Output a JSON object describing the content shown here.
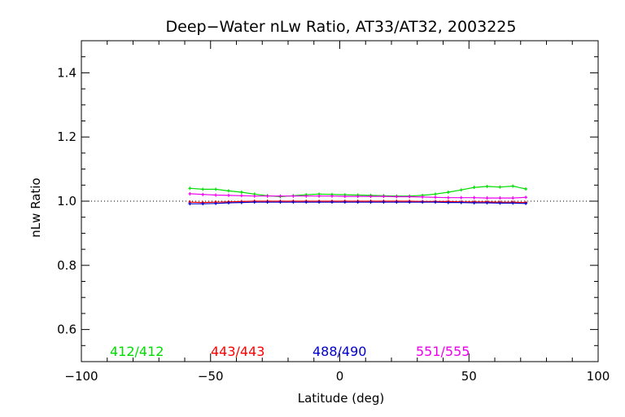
{
  "chart_data": {
    "type": "line",
    "title": "Deep−Water nLw Ratio, AT33/AT32, 2003225",
    "xlabel": "Latitude (deg)",
    "ylabel": "nLw Ratio",
    "xlim": [
      -100,
      100
    ],
    "ylim": [
      0.5,
      1.5
    ],
    "x_ticks": [
      -100,
      -50,
      0,
      50,
      100
    ],
    "x_tick_labels": [
      "−100",
      "−50",
      "0",
      "50",
      "100"
    ],
    "y_ticks": [
      0.6,
      0.8,
      1.0,
      1.2,
      1.4
    ],
    "y_tick_labels": [
      "0.6",
      "0.8",
      "1.0",
      "1.2",
      "1.4"
    ],
    "reference_line": 1.0,
    "x": [
      -58,
      -53,
      -48,
      -43,
      -38,
      -33,
      -28,
      -23,
      -18,
      -13,
      -8,
      -3,
      2,
      7,
      12,
      17,
      22,
      27,
      32,
      37,
      42,
      47,
      52,
      57,
      62,
      67,
      72
    ],
    "series": [
      {
        "name": "412/412",
        "color": "#00dd00",
        "values": [
          1.04,
          1.037,
          1.037,
          1.032,
          1.028,
          1.022,
          1.017,
          1.014,
          1.017,
          1.02,
          1.022,
          1.021,
          1.02,
          1.019,
          1.018,
          1.017,
          1.016,
          1.016,
          1.018,
          1.022,
          1.028,
          1.035,
          1.043,
          1.046,
          1.044,
          1.047,
          1.038
        ]
      },
      {
        "name": "443/443",
        "color": "#ff0000",
        "values": [
          0.997,
          0.996,
          0.997,
          0.998,
          0.999,
          1.0,
          1.0,
          1.0,
          1.0,
          1.0,
          1.0,
          1.0,
          1.0,
          1.0,
          1.0,
          1.0,
          1.0,
          1.0,
          0.999,
          0.999,
          0.999,
          0.998,
          0.998,
          0.998,
          0.997,
          0.997,
          0.996
        ]
      },
      {
        "name": "488/490",
        "color": "#0000cc",
        "values": [
          0.992,
          0.992,
          0.993,
          0.995,
          0.996,
          0.997,
          0.997,
          0.997,
          0.997,
          0.997,
          0.997,
          0.997,
          0.997,
          0.997,
          0.997,
          0.997,
          0.997,
          0.997,
          0.997,
          0.997,
          0.996,
          0.996,
          0.995,
          0.995,
          0.994,
          0.994,
          0.993
        ]
      },
      {
        "name": "551/555",
        "color": "#ee00ee",
        "values": [
          1.023,
          1.021,
          1.019,
          1.018,
          1.017,
          1.016,
          1.016,
          1.016,
          1.016,
          1.016,
          1.016,
          1.016,
          1.015,
          1.015,
          1.015,
          1.015,
          1.014,
          1.014,
          1.013,
          1.012,
          1.011,
          1.011,
          1.011,
          1.01,
          1.01,
          1.01,
          1.012
        ]
      }
    ]
  }
}
